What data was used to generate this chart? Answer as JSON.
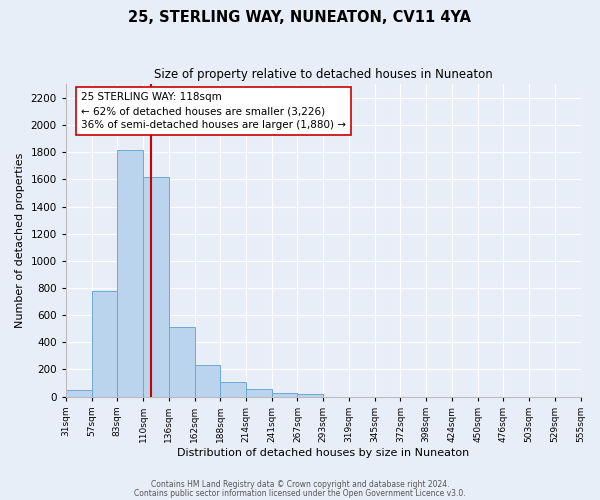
{
  "title": "25, STERLING WAY, NUNEATON, CV11 4YA",
  "subtitle": "Size of property relative to detached houses in Nuneaton",
  "xlabel": "Distribution of detached houses by size in Nuneaton",
  "ylabel": "Number of detached properties",
  "bar_values": [
    50,
    775,
    1820,
    1620,
    515,
    230,
    105,
    55,
    25,
    20,
    0,
    0,
    0,
    0,
    0,
    0,
    0,
    0,
    0,
    0
  ],
  "bin_labels": [
    "31sqm",
    "57sqm",
    "83sqm",
    "110sqm",
    "136sqm",
    "162sqm",
    "188sqm",
    "214sqm",
    "241sqm",
    "267sqm",
    "293sqm",
    "319sqm",
    "345sqm",
    "372sqm",
    "398sqm",
    "424sqm",
    "450sqm",
    "476sqm",
    "503sqm",
    "529sqm",
    "555sqm"
  ],
  "bar_color": "#bad4ed",
  "bar_edge_color": "#6aaad4",
  "background_color": "#e8eef8",
  "grid_color": "#ffffff",
  "vline_color": "#cc0000",
  "vline_position": 3.31,
  "annotation_text": "25 STERLING WAY: 118sqm\n← 62% of detached houses are smaller (3,226)\n36% of semi-detached houses are larger (1,880) →",
  "annotation_box_color": "#ffffff",
  "annotation_box_edge": "#cc0000",
  "ylim": [
    0,
    2300
  ],
  "yticks": [
    0,
    200,
    400,
    600,
    800,
    1000,
    1200,
    1400,
    1600,
    1800,
    2000,
    2200
  ],
  "footer_line1": "Contains HM Land Registry data © Crown copyright and database right 2024.",
  "footer_line2": "Contains public sector information licensed under the Open Government Licence v3.0.",
  "figsize": [
    6.0,
    5.0
  ],
  "dpi": 100
}
